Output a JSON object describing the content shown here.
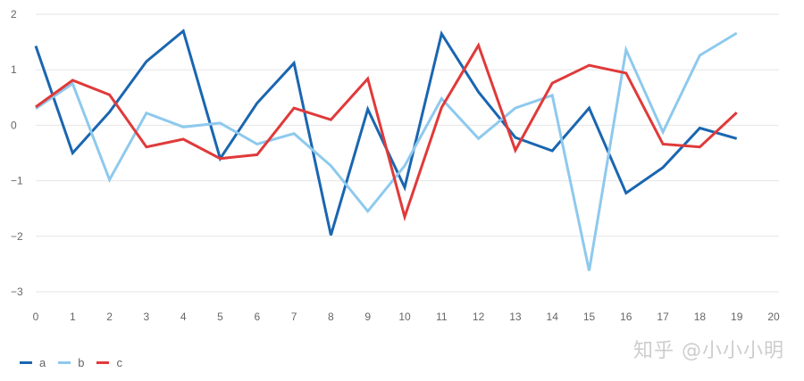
{
  "chart_data": {
    "type": "line",
    "x": [
      0,
      1,
      2,
      3,
      4,
      5,
      6,
      7,
      8,
      9,
      10,
      11,
      12,
      13,
      14,
      15,
      16,
      17,
      18,
      19
    ],
    "xlim": [
      0,
      20
    ],
    "xticks": [
      0,
      1,
      2,
      3,
      4,
      5,
      6,
      7,
      8,
      9,
      10,
      11,
      12,
      13,
      14,
      15,
      16,
      17,
      18,
      19,
      20
    ],
    "ylim": [
      -3,
      2
    ],
    "yticks": [
      2,
      1,
      0,
      -1,
      -2,
      -3
    ],
    "ytick_labels": [
      "2",
      "1",
      "0",
      "−1",
      "−2",
      "−3"
    ],
    "grid": true,
    "legend_position": "bottom-left",
    "series": [
      {
        "name": "a",
        "color": "#1a66b0",
        "values": [
          1.43,
          -0.5,
          0.24,
          1.15,
          1.7,
          -0.6,
          0.4,
          1.12,
          -1.98,
          0.29,
          -1.12,
          1.65,
          0.6,
          -0.22,
          -0.46,
          0.31,
          -1.22,
          -0.76,
          -0.05,
          -0.24
        ]
      },
      {
        "name": "b",
        "color": "#8ec9ee",
        "values": [
          0.3,
          0.75,
          -0.98,
          0.22,
          -0.03,
          0.04,
          -0.34,
          -0.15,
          -0.73,
          -1.55,
          -0.73,
          0.48,
          -0.24,
          0.31,
          0.54,
          -2.62,
          1.36,
          -0.12,
          1.26,
          1.66
        ]
      },
      {
        "name": "c",
        "color": "#e03a3a",
        "values": [
          0.33,
          0.81,
          0.55,
          -0.39,
          -0.25,
          -0.6,
          -0.53,
          0.31,
          0.1,
          0.84,
          -1.65,
          0.32,
          1.44,
          -0.45,
          0.76,
          1.08,
          0.94,
          -0.34,
          -0.39,
          0.23
        ]
      }
    ]
  },
  "watermark": "知乎 @小小小明"
}
